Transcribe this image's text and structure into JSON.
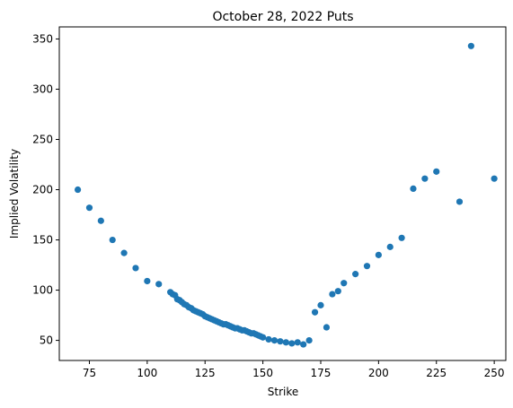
{
  "chart_data": {
    "type": "scatter",
    "title": "October 28, 2022 Puts",
    "xlabel": "Strike",
    "ylabel": "Implied Volatility",
    "xlim": [
      62,
      255
    ],
    "ylim": [
      30,
      362
    ],
    "xticks": [
      75,
      100,
      125,
      150,
      175,
      200,
      225,
      250
    ],
    "yticks": [
      50,
      100,
      150,
      200,
      250,
      300,
      350
    ],
    "grid": false,
    "marker_color": "#1f77b4",
    "x": [
      70,
      75,
      80,
      85,
      90,
      95,
      100,
      105,
      110,
      111,
      112,
      113,
      114,
      115,
      116,
      117,
      118,
      119,
      120,
      121,
      122,
      123,
      124,
      125,
      126,
      127,
      128,
      129,
      130,
      131,
      132,
      133,
      134,
      135,
      136,
      137,
      138,
      139,
      140,
      141,
      142,
      143,
      144,
      145,
      146,
      147,
      148,
      149,
      150,
      152.5,
      155,
      157.5,
      160,
      162.5,
      165,
      167.5,
      170,
      172.5,
      175,
      177.5,
      180,
      182.5,
      185,
      190,
      195,
      200,
      205,
      210,
      215,
      220,
      225,
      235,
      240,
      250
    ],
    "y": [
      200,
      182,
      169,
      150,
      137,
      122,
      109,
      106,
      98,
      96,
      95,
      91,
      90,
      88,
      86,
      85,
      83,
      82,
      80,
      79,
      78,
      77,
      76,
      74,
      73,
      72,
      71,
      70,
      69,
      68,
      67,
      66,
      66,
      65,
      64,
      63,
      62,
      62,
      61,
      60,
      60,
      59,
      58,
      57,
      57,
      56,
      55,
      54,
      53,
      51,
      50,
      49,
      48,
      47,
      48,
      46,
      50,
      78,
      85,
      63,
      96,
      99,
      107,
      116,
      124,
      135,
      143,
      152,
      201,
      211,
      218,
      188,
      343,
      211
    ]
  }
}
